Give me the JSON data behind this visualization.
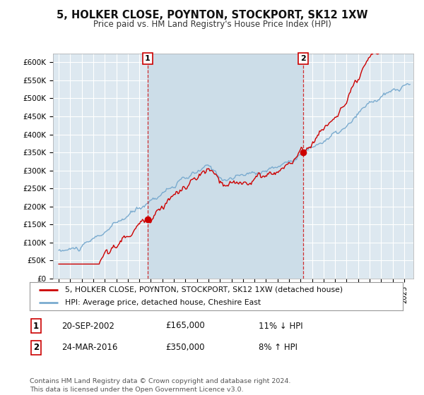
{
  "title": "5, HOLKER CLOSE, POYNTON, STOCKPORT, SK12 1XW",
  "subtitle": "Price paid vs. HM Land Registry's House Price Index (HPI)",
  "ylim": [
    0,
    625000
  ],
  "yticks": [
    0,
    50000,
    100000,
    150000,
    200000,
    250000,
    300000,
    350000,
    400000,
    450000,
    500000,
    550000,
    600000
  ],
  "ytick_labels": [
    "£0",
    "£50K",
    "£100K",
    "£150K",
    "£200K",
    "£250K",
    "£300K",
    "£350K",
    "£400K",
    "£450K",
    "£500K",
    "£550K",
    "£600K"
  ],
  "house_color": "#cc0000",
  "hpi_color": "#7aabcf",
  "sale1_date": 2002.72,
  "sale1_price": 165000,
  "sale2_date": 2016.22,
  "sale2_price": 350000,
  "legend_house": "5, HOLKER CLOSE, POYNTON, STOCKPORT, SK12 1XW (detached house)",
  "legend_hpi": "HPI: Average price, detached house, Cheshire East",
  "note1_label": "1",
  "note1_date": "20-SEP-2002",
  "note1_price": "£165,000",
  "note1_hpi": "11% ↓ HPI",
  "note2_label": "2",
  "note2_date": "24-MAR-2016",
  "note2_price": "£350,000",
  "note2_hpi": "8% ↑ HPI",
  "footer": "Contains HM Land Registry data © Crown copyright and database right 2024.\nThis data is licensed under the Open Government Licence v3.0.",
  "bg_color": "#ffffff",
  "plot_bg_color": "#dde8f0",
  "highlight_bg_color": "#ccdde8"
}
